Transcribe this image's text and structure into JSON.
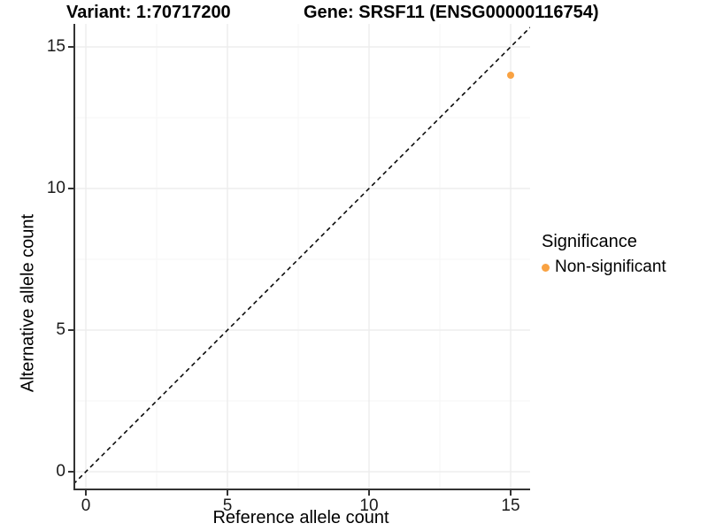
{
  "titles": {
    "variant": "Variant: 1:70717200",
    "gene": "Gene: SRSF11 (ENSG00000116754)"
  },
  "legend": {
    "title": "Significance",
    "items": [
      {
        "label": "Non-significant",
        "color": "#F9A242"
      }
    ]
  },
  "colors": {
    "point": "#F9A242",
    "axis_line": "#333333",
    "grid_major": "#EBEBEB",
    "grid_minor": "#F6F6F6",
    "reference_line": "#000000",
    "background": "#FFFFFF"
  },
  "chart_data": {
    "type": "scatter",
    "title": "Variant: 1:70717200   Gene: SRSF11 (ENSG00000116754)",
    "xlabel": "Reference allele count",
    "ylabel": "Alternative allele count",
    "xlim": [
      -0.44,
      15.69
    ],
    "ylim": [
      -0.63,
      15.81
    ],
    "x_ticks_major": [
      0,
      5,
      10,
      15
    ],
    "x_ticks_minor": [
      2.5,
      7.5,
      12.5
    ],
    "y_ticks_major": [
      0,
      5,
      10,
      15
    ],
    "y_ticks_minor": [
      2.5,
      7.5,
      12.5
    ],
    "grid": true,
    "legend_position": "right",
    "legend_title": "Significance",
    "series": [
      {
        "name": "Non-significant",
        "color": "#F9A242",
        "points": [
          {
            "x": 15,
            "y": 14
          }
        ]
      }
    ],
    "reference_line": {
      "equation": "y = x",
      "style": "dashed",
      "color": "#000000"
    }
  }
}
